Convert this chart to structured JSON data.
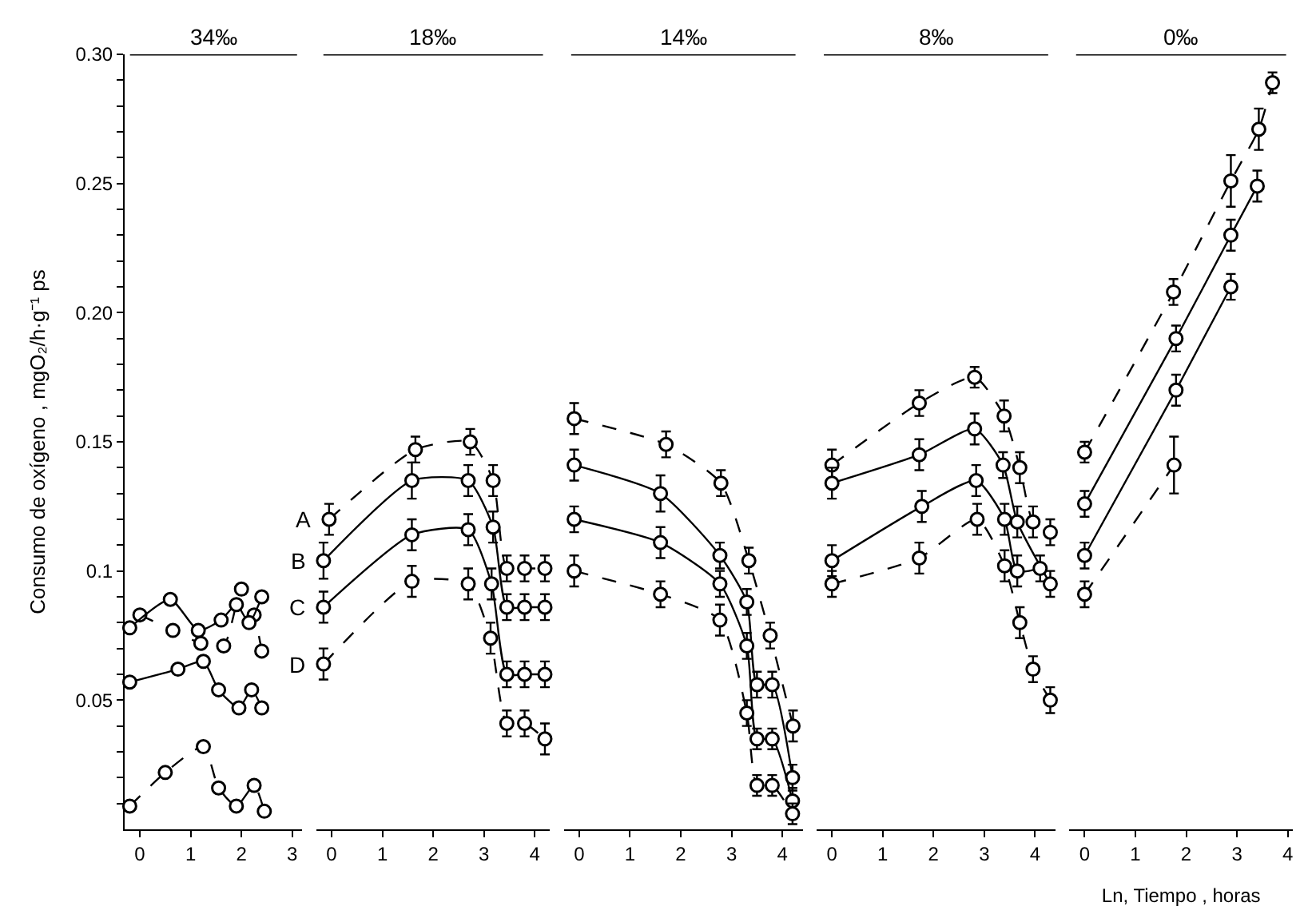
{
  "chart_data": [
    {
      "type": "line",
      "title": "34‰",
      "ylabel": "Consumo de oxígeno , mgO₂/h·g⁻¹ ps",
      "marker": "circle",
      "xlim": [
        -0.3,
        3.2
      ],
      "xticks": [
        0,
        1,
        2,
        3
      ],
      "ylim": [
        0,
        0.3
      ],
      "yticks": [
        {
          "value": 0.01,
          "label": null
        },
        {
          "value": 0.02,
          "label": null
        },
        {
          "value": 0.03,
          "label": null
        },
        {
          "value": 0.04,
          "label": null
        },
        0.05,
        {
          "value": 0.06,
          "label": null
        },
        {
          "value": 0.07,
          "label": null
        },
        {
          "value": 0.08,
          "label": null
        },
        {
          "value": 0.09,
          "label": null
        },
        0.1,
        {
          "value": 0.11,
          "label": null
        },
        {
          "value": 0.12,
          "label": null
        },
        {
          "value": 0.13,
          "label": null
        },
        {
          "value": 0.14,
          "label": null
        },
        0.15,
        {
          "value": 0.16,
          "label": null
        },
        {
          "value": 0.17,
          "label": null
        },
        {
          "value": 0.18,
          "label": null
        },
        {
          "value": 0.19,
          "label": null
        },
        {
          "value": 0.2,
          "label": "0.20"
        },
        {
          "value": 0.21,
          "label": null
        },
        {
          "value": 0.22,
          "label": null
        },
        {
          "value": 0.23,
          "label": null
        },
        {
          "value": 0.24,
          "label": null
        },
        0.25,
        {
          "value": 0.26,
          "label": null
        },
        {
          "value": 0.27,
          "label": null
        },
        {
          "value": 0.28,
          "label": null
        },
        {
          "value": 0.29,
          "label": null
        },
        {
          "value": 0.3,
          "label": "0.30"
        }
      ],
      "ref_lines": [
        {
          "axis": "y",
          "value": 0.3,
          "color": "#000000"
        }
      ],
      "series": [
        {
          "color": "#000000",
          "line_style": "dashed",
          "x": [
            0,
            0.65,
            1.2,
            1.65,
            2.0,
            2.25,
            2.4
          ],
          "values": [
            0.083,
            0.077,
            0.072,
            0.071,
            0.093,
            0.083,
            0.069
          ]
        },
        {
          "color": "#000000",
          "line_style": "solid",
          "x": [
            -0.2,
            0.6,
            1.15,
            1.6,
            1.9,
            2.15,
            2.4
          ],
          "values": [
            0.078,
            0.089,
            0.077,
            0.081,
            0.087,
            0.08,
            0.09
          ]
        },
        {
          "color": "#000000",
          "line_style": "solid",
          "x": [
            -0.2,
            0.75,
            1.25,
            1.55,
            1.95,
            2.2,
            2.4
          ],
          "values": [
            0.057,
            0.062,
            0.065,
            0.054,
            0.047,
            0.054,
            0.047
          ]
        },
        {
          "color": "#000000",
          "line_style": "dashed",
          "x": [
            -0.2,
            0.5,
            1.25,
            1.55,
            1.9,
            2.25,
            2.45
          ],
          "values": [
            0.009,
            0.022,
            0.032,
            0.016,
            0.009,
            0.017,
            0.007
          ]
        }
      ]
    },
    {
      "type": "line",
      "title": "18‰",
      "marker": "circle",
      "tick_labels": "x",
      "xlim": [
        -0.3,
        4.3
      ],
      "xticks": [
        0,
        1,
        2,
        3,
        4
      ],
      "ylim": [
        0,
        0.3
      ],
      "ref_lines": [
        {
          "axis": "y",
          "value": 0.3,
          "color": "#000000"
        }
      ],
      "series": [
        {
          "name": "A",
          "color": "#000000",
          "line_style": "dashed",
          "x": [
            -0.05,
            1.65,
            2.73,
            3.18,
            3.45,
            3.8,
            4.2
          ],
          "values": [
            0.12,
            0.147,
            0.15,
            0.135,
            0.101,
            0.101,
            0.101
          ],
          "errors": [
            0.006,
            0.005,
            0.005,
            0.006,
            0.005,
            0.005,
            0.005
          ]
        },
        {
          "name": "B",
          "color": "#000000",
          "line_style": "solid",
          "x": [
            -0.16,
            1.58,
            2.69,
            3.18,
            3.45,
            3.8,
            4.2
          ],
          "values": [
            0.104,
            0.135,
            0.135,
            0.117,
            0.086,
            0.086,
            0.086
          ],
          "errors": [
            0.007,
            0.007,
            0.006,
            0.006,
            0.005,
            0.005,
            0.005
          ]
        },
        {
          "name": "C",
          "color": "#000000",
          "line_style": "solid",
          "x": [
            -0.16,
            1.58,
            2.69,
            3.15,
            3.45,
            3.8,
            4.2
          ],
          "values": [
            0.086,
            0.114,
            0.116,
            0.095,
            0.06,
            0.06,
            0.06
          ],
          "errors": [
            0.006,
            0.006,
            0.006,
            0.006,
            0.005,
            0.005,
            0.005
          ]
        },
        {
          "name": "D",
          "color": "#000000",
          "line_style": "dashed",
          "x": [
            -0.16,
            1.58,
            2.69,
            3.13,
            3.45,
            3.8,
            4.2
          ],
          "values": [
            0.064,
            0.096,
            0.095,
            0.074,
            0.041,
            0.041,
            0.035
          ],
          "errors": [
            0.006,
            0.006,
            0.006,
            0.006,
            0.005,
            0.005,
            0.006
          ]
        }
      ]
    },
    {
      "type": "line",
      "title": "14‰",
      "marker": "circle",
      "tick_labels": "x",
      "xlim": [
        -0.3,
        4.4
      ],
      "xticks": [
        0,
        1,
        2,
        3,
        4
      ],
      "ylim": [
        0,
        0.3
      ],
      "ref_lines": [
        {
          "axis": "y",
          "value": 0.3,
          "color": "#000000"
        }
      ],
      "series": [
        {
          "color": "#000000",
          "line_style": "dashed",
          "x": [
            -0.1,
            1.71,
            2.79,
            3.34,
            3.76,
            4.21
          ],
          "values": [
            0.159,
            0.149,
            0.134,
            0.104,
            0.075,
            0.04
          ],
          "errors": [
            0.006,
            0.005,
            0.005,
            0.005,
            0.005,
            0.006
          ]
        },
        {
          "color": "#000000",
          "line_style": "solid",
          "x": [
            -0.1,
            1.6,
            2.77,
            3.3,
            3.5,
            3.8,
            4.2
          ],
          "values": [
            0.141,
            0.13,
            0.106,
            0.088,
            0.056,
            0.056,
            0.02
          ],
          "errors": [
            0.006,
            0.007,
            0.005,
            0.005,
            0.005,
            0.005,
            0.005
          ]
        },
        {
          "color": "#000000",
          "line_style": "solid",
          "x": [
            -0.1,
            1.6,
            2.77,
            3.3,
            3.5,
            3.8,
            4.2
          ],
          "values": [
            0.12,
            0.111,
            0.095,
            0.071,
            0.035,
            0.035,
            0.011
          ],
          "errors": [
            0.005,
            0.006,
            0.005,
            0.005,
            0.004,
            0.004,
            0.005
          ]
        },
        {
          "color": "#000000",
          "line_style": "dashed",
          "x": [
            -0.1,
            1.6,
            2.77,
            3.3,
            3.5,
            3.8,
            4.2
          ],
          "values": [
            0.1,
            0.091,
            0.081,
            0.045,
            0.017,
            0.017,
            0.006
          ],
          "errors": [
            0.006,
            0.005,
            0.006,
            0.005,
            0.004,
            0.004,
            0.004
          ]
        }
      ]
    },
    {
      "type": "line",
      "title": "8‰",
      "marker": "circle",
      "tick_labels": "x",
      "xlim": [
        -0.3,
        4.4
      ],
      "xticks": [
        0,
        1,
        2,
        3,
        4
      ],
      "ylim": [
        0,
        0.3
      ],
      "ref_lines": [
        {
          "axis": "y",
          "value": 0.3,
          "color": "#000000"
        }
      ],
      "series": [
        {
          "color": "#000000",
          "line_style": "dashed",
          "x": [
            0,
            1.72,
            2.81,
            3.39,
            3.7,
            3.96,
            4.3
          ],
          "values": [
            0.141,
            0.165,
            0.175,
            0.16,
            0.14,
            0.119,
            0.115
          ],
          "errors": [
            0.006,
            0.005,
            0.004,
            0.006,
            0.006,
            0.006,
            0.005
          ]
        },
        {
          "color": "#000000",
          "line_style": "solid",
          "x": [
            0,
            1.72,
            2.81,
            3.37,
            3.65,
            4.3
          ],
          "values": [
            0.134,
            0.145,
            0.155,
            0.141,
            0.119,
            0.095
          ],
          "errors": [
            0.006,
            0.006,
            0.006,
            0.005,
            0.006,
            0.005
          ]
        },
        {
          "color": "#000000",
          "line_style": "solid",
          "x": [
            0,
            1.77,
            2.84,
            3.4,
            3.65,
            4.1
          ],
          "values": [
            0.104,
            0.125,
            0.135,
            0.12,
            0.1,
            0.101
          ],
          "errors": [
            0.006,
            0.006,
            0.006,
            0.006,
            0.006,
            0.005
          ]
        },
        {
          "color": "#000000",
          "line_style": "dashed",
          "x": [
            0,
            1.72,
            2.86,
            3.4,
            3.7,
            3.96,
            4.3
          ],
          "values": [
            0.095,
            0.105,
            0.12,
            0.102,
            0.08,
            0.062,
            0.05
          ],
          "errors": [
            0.005,
            0.006,
            0.006,
            0.006,
            0.006,
            0.005,
            0.005
          ]
        }
      ]
    },
    {
      "type": "line",
      "title": "0‰",
      "xlabel": "Ln, Tiempo , horas",
      "marker": "circle",
      "tick_labels": "x",
      "xlim": [
        -0.3,
        4.1
      ],
      "xticks": [
        0,
        1,
        2,
        3,
        4
      ],
      "ylim": [
        0,
        0.3
      ],
      "ref_lines": [
        {
          "axis": "y",
          "value": 0.3,
          "color": "#000000"
        }
      ],
      "series": [
        {
          "color": "#000000",
          "line_style": "dashed",
          "x": [
            0,
            1.75,
            2.88,
            3.43,
            3.7
          ],
          "values": [
            0.146,
            0.208,
            0.251,
            0.271,
            0.289
          ],
          "errors": [
            0.004,
            0.005,
            0.01,
            0.008,
            0.004
          ]
        },
        {
          "color": "#000000",
          "line_style": "solid",
          "x": [
            0,
            1.8,
            2.88,
            3.4
          ],
          "values": [
            0.126,
            0.19,
            0.23,
            0.249
          ],
          "errors": [
            0.005,
            0.005,
            0.006,
            0.006
          ]
        },
        {
          "color": "#000000",
          "line_style": "solid",
          "x": [
            0,
            1.8,
            2.88
          ],
          "values": [
            0.106,
            0.17,
            0.21
          ],
          "errors": [
            0.005,
            0.006,
            0.005
          ]
        },
        {
          "color": "#000000",
          "line_style": "dashed",
          "x": [
            0,
            1.76
          ],
          "values": [
            0.091,
            0.141
          ],
          "errors": [
            0.005,
            0.011
          ]
        }
      ]
    }
  ]
}
